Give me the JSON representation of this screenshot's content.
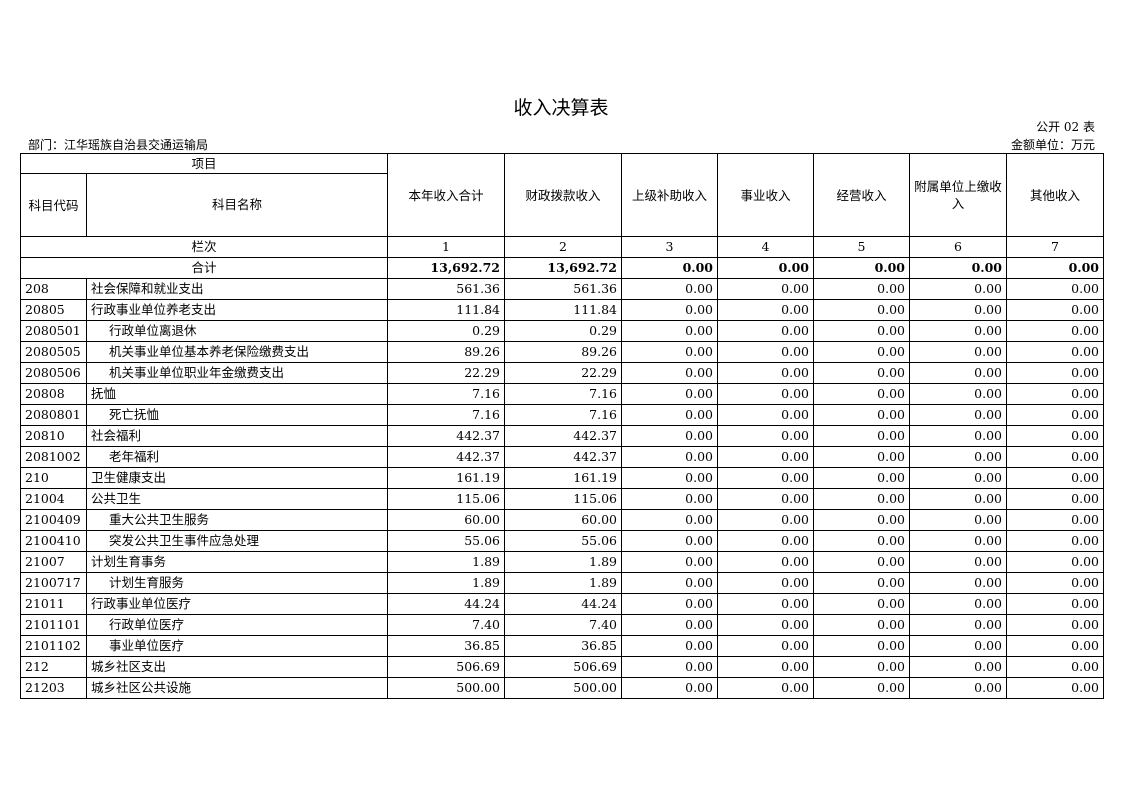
{
  "title": "收入决算表",
  "form_no": "公开 02 表",
  "department": "部门：江华瑶族自治县交通运输局",
  "unit": "金额单位：万元",
  "headers": {
    "item": "项目",
    "code": "科目代码",
    "name": "科目名称",
    "cols": [
      "本年收入合计",
      "财政拨款收入",
      "上级补助收入",
      "事业收入",
      "经营收入",
      "附属单位上缴收入",
      "其他收入"
    ]
  },
  "column_index_label": "栏次",
  "column_index": [
    "1",
    "2",
    "3",
    "4",
    "5",
    "6",
    "7"
  ],
  "total": {
    "label": "合计",
    "values": [
      "13,692.72",
      "13,692.72",
      "0.00",
      "0.00",
      "0.00",
      "0.00",
      "0.00"
    ]
  },
  "rows": [
    {
      "code": "208",
      "name": "社会保障和就业支出",
      "level": 0,
      "values": [
        "561.36",
        "561.36",
        "0.00",
        "0.00",
        "0.00",
        "0.00",
        "0.00"
      ]
    },
    {
      "code": "20805",
      "name": "行政事业单位养老支出",
      "level": 0,
      "values": [
        "111.84",
        "111.84",
        "0.00",
        "0.00",
        "0.00",
        "0.00",
        "0.00"
      ]
    },
    {
      "code": "2080501",
      "name": "行政单位离退休",
      "level": 1,
      "values": [
        "0.29",
        "0.29",
        "0.00",
        "0.00",
        "0.00",
        "0.00",
        "0.00"
      ]
    },
    {
      "code": "2080505",
      "name": "机关事业单位基本养老保险缴费支出",
      "level": 1,
      "values": [
        "89.26",
        "89.26",
        "0.00",
        "0.00",
        "0.00",
        "0.00",
        "0.00"
      ]
    },
    {
      "code": "2080506",
      "name": "机关事业单位职业年金缴费支出",
      "level": 1,
      "values": [
        "22.29",
        "22.29",
        "0.00",
        "0.00",
        "0.00",
        "0.00",
        "0.00"
      ]
    },
    {
      "code": "20808",
      "name": "抚恤",
      "level": 0,
      "values": [
        "7.16",
        "7.16",
        "0.00",
        "0.00",
        "0.00",
        "0.00",
        "0.00"
      ]
    },
    {
      "code": "2080801",
      "name": "死亡抚恤",
      "level": 1,
      "values": [
        "7.16",
        "7.16",
        "0.00",
        "0.00",
        "0.00",
        "0.00",
        "0.00"
      ]
    },
    {
      "code": "20810",
      "name": "社会福利",
      "level": 0,
      "values": [
        "442.37",
        "442.37",
        "0.00",
        "0.00",
        "0.00",
        "0.00",
        "0.00"
      ]
    },
    {
      "code": "2081002",
      "name": "老年福利",
      "level": 1,
      "values": [
        "442.37",
        "442.37",
        "0.00",
        "0.00",
        "0.00",
        "0.00",
        "0.00"
      ]
    },
    {
      "code": "210",
      "name": "卫生健康支出",
      "level": 0,
      "values": [
        "161.19",
        "161.19",
        "0.00",
        "0.00",
        "0.00",
        "0.00",
        "0.00"
      ]
    },
    {
      "code": "21004",
      "name": "公共卫生",
      "level": 0,
      "values": [
        "115.06",
        "115.06",
        "0.00",
        "0.00",
        "0.00",
        "0.00",
        "0.00"
      ]
    },
    {
      "code": "2100409",
      "name": "重大公共卫生服务",
      "level": 1,
      "values": [
        "60.00",
        "60.00",
        "0.00",
        "0.00",
        "0.00",
        "0.00",
        "0.00"
      ]
    },
    {
      "code": "2100410",
      "name": "突发公共卫生事件应急处理",
      "level": 1,
      "values": [
        "55.06",
        "55.06",
        "0.00",
        "0.00",
        "0.00",
        "0.00",
        "0.00"
      ]
    },
    {
      "code": "21007",
      "name": "计划生育事务",
      "level": 0,
      "values": [
        "1.89",
        "1.89",
        "0.00",
        "0.00",
        "0.00",
        "0.00",
        "0.00"
      ]
    },
    {
      "code": "2100717",
      "name": "计划生育服务",
      "level": 1,
      "values": [
        "1.89",
        "1.89",
        "0.00",
        "0.00",
        "0.00",
        "0.00",
        "0.00"
      ]
    },
    {
      "code": "21011",
      "name": "行政事业单位医疗",
      "level": 0,
      "values": [
        "44.24",
        "44.24",
        "0.00",
        "0.00",
        "0.00",
        "0.00",
        "0.00"
      ]
    },
    {
      "code": "2101101",
      "name": "行政单位医疗",
      "level": 1,
      "values": [
        "7.40",
        "7.40",
        "0.00",
        "0.00",
        "0.00",
        "0.00",
        "0.00"
      ]
    },
    {
      "code": "2101102",
      "name": "事业单位医疗",
      "level": 1,
      "values": [
        "36.85",
        "36.85",
        "0.00",
        "0.00",
        "0.00",
        "0.00",
        "0.00"
      ]
    },
    {
      "code": "212",
      "name": "城乡社区支出",
      "level": 0,
      "values": [
        "506.69",
        "506.69",
        "0.00",
        "0.00",
        "0.00",
        "0.00",
        "0.00"
      ]
    },
    {
      "code": "21203",
      "name": "城乡社区公共设施",
      "level": 0,
      "values": [
        "500.00",
        "500.00",
        "0.00",
        "0.00",
        "0.00",
        "0.00",
        "0.00"
      ]
    }
  ]
}
